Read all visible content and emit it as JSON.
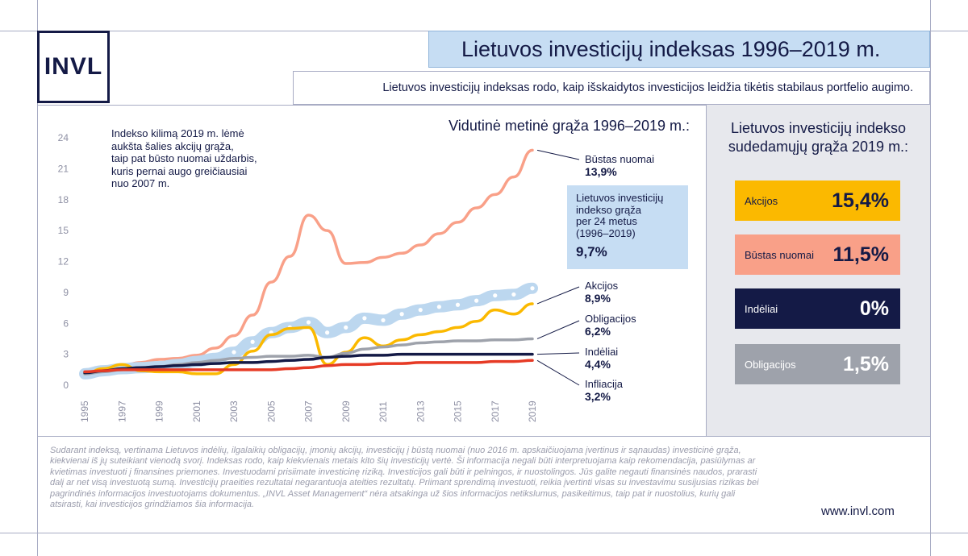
{
  "logo": "INVL",
  "title": "Lietuvos investicijų indeksas 1996–2019 m.",
  "subtitle": "Lietuvos investicijų indeksas rodo, kaip išskaidytos investicijos leidžia tikėtis stabilaus portfelio augimo.",
  "chart_title": "Vidutinė metinė grąža 1996–2019 m.:",
  "annotation": "Indekso kilimą 2019 m. lėmė\naukšta šalies akcijų grąža,\ntaip pat būsto nuomai uždarbis,\nkuris pernai augo greičiausiai\nnuo 2007 m.",
  "index_box": {
    "text": "Lietuvos investicijų\nindekso grąža\nper 24 metus\n(1996–2019)",
    "value": "9,7%"
  },
  "series_labels": [
    {
      "name": "Būstas nuomai",
      "value": "13,9%"
    },
    {
      "name": "Akcijos",
      "value": "8,9%"
    },
    {
      "name": "Obligacijos",
      "value": "6,2%"
    },
    {
      "name": "Indėliai",
      "value": "4,4%"
    },
    {
      "name": "Infliacija",
      "value": "3,2%"
    }
  ],
  "right_panel": {
    "title": "Lietuvos investicijų indekso\nsudedamųjų grąža 2019 m.:",
    "items": [
      {
        "label": "Akcijos",
        "value": "15,4%",
        "color": "#fbb900",
        "text_color": "#141a46"
      },
      {
        "label": "Būstas nuomai",
        "value": "11,5%",
        "color": "#f9a088",
        "text_color": "#141a46"
      },
      {
        "label": "Indėliai",
        "value": "0%",
        "color": "#141a46",
        "text_color": "#ffffff"
      },
      {
        "label": "Obligacijos",
        "value": "1,5%",
        "color": "#9ea2ab",
        "text_color": "#ffffff"
      }
    ]
  },
  "footer": "Sudarant indeksą, vertinama Lietuvos indėlių, ilgalaikių obligacijų, įmonių akcijų, investicijų į būstą nuomai (nuo 2016 m. apskaičiuojama įvertinus ir sąnaudas) investicinė grąža, kiekvienai iš jų suteikiant vienodą svorį. Indeksas rodo, kaip kiekvienais metais kito šių investicijų vertė. Ši informacija negali būti interpretuojama kaip rekomendacija, pasiūlymas ar kvietimas investuoti į finansines priemones. Investuodami prisiimate investicinę riziką. Investicijos gali būti ir pelningos, ir nuostolingos. Jūs galite negauti finansinės naudos, prarasti dalį ar net visą investuotą sumą. Investicijų praeities rezultatai negarantuoja ateities rezultatų. Priimant sprendimą investuoti, reikia įvertinti visas su investavimu susijusias rizikas bei pagrindinės informacijos investuotojams dokumentus. „INVL Asset Management“ nėra atsakinga už šios informacijos netikslumus, pasikeitimus, taip pat ir nuostolius, kurių gali atsirasti, kai investicijos grindžiamos šia informacija.",
  "website": "www.invl.com",
  "chart_data": {
    "type": "line",
    "x": [
      1995,
      1996,
      1997,
      1998,
      1999,
      2000,
      2001,
      2002,
      2003,
      2004,
      2005,
      2006,
      2007,
      2008,
      2009,
      2010,
      2011,
      2012,
      2013,
      2014,
      2015,
      2016,
      2017,
      2018,
      2019
    ],
    "xticks": [
      1995,
      1997,
      1999,
      2001,
      2003,
      2005,
      2007,
      2009,
      2011,
      2013,
      2015,
      2017,
      2019
    ],
    "yticks": [
      0,
      3,
      6,
      9,
      12,
      15,
      18,
      21,
      24
    ],
    "ylim": [
      0,
      24
    ],
    "series": [
      {
        "name": "Būstas nuomai",
        "color": "#f9a088",
        "values": [
          1.1,
          1.5,
          1.9,
          2.2,
          2.5,
          2.6,
          2.9,
          3.6,
          4.8,
          6.8,
          10.0,
          12.5,
          16.5,
          15.0,
          11.8,
          11.9,
          12.4,
          12.8,
          13.6,
          14.7,
          15.8,
          17.2,
          18.5,
          20.2,
          22.8
        ]
      },
      {
        "name": "Lietuvos investicijų indeksas",
        "color": "#bcd7ef",
        "values": [
          1.1,
          1.4,
          1.6,
          1.7,
          1.8,
          2.0,
          2.3,
          2.6,
          3.2,
          4.2,
          5.1,
          5.6,
          6.1,
          5.1,
          5.6,
          6.5,
          6.3,
          6.9,
          7.3,
          7.6,
          7.8,
          8.2,
          8.7,
          8.8,
          9.4
        ]
      },
      {
        "name": "Akcijos",
        "color": "#fbb900",
        "values": [
          1.1,
          1.6,
          2.0,
          1.4,
          1.3,
          1.3,
          1.1,
          1.1,
          2.0,
          3.3,
          4.9,
          5.5,
          5.6,
          2.0,
          3.2,
          4.6,
          3.8,
          4.4,
          4.9,
          5.2,
          5.6,
          6.2,
          7.3,
          6.9,
          7.9
        ]
      },
      {
        "name": "Obligacijos",
        "color": "#9ea2ab",
        "values": [
          1.1,
          1.3,
          1.5,
          1.7,
          1.8,
          2.0,
          2.2,
          2.4,
          2.6,
          2.7,
          2.8,
          2.8,
          2.9,
          2.7,
          3.1,
          3.5,
          3.7,
          3.9,
          4.1,
          4.2,
          4.3,
          4.3,
          4.4,
          4.4,
          4.5
        ]
      },
      {
        "name": "Indėliai",
        "color": "#141a46",
        "values": [
          1.2,
          1.4,
          1.6,
          1.7,
          1.8,
          1.9,
          2.0,
          2.1,
          2.2,
          2.2,
          2.3,
          2.4,
          2.5,
          2.7,
          2.8,
          2.9,
          2.9,
          3.0,
          3.0,
          3.0,
          3.0,
          3.0,
          3.0,
          3.0,
          3.0
        ]
      },
      {
        "name": "Infliacija",
        "color": "#e63a25",
        "values": [
          1.3,
          1.4,
          1.5,
          1.5,
          1.5,
          1.5,
          1.5,
          1.5,
          1.5,
          1.5,
          1.5,
          1.6,
          1.7,
          1.9,
          2.0,
          2.0,
          2.1,
          2.1,
          2.2,
          2.2,
          2.2,
          2.2,
          2.3,
          2.3,
          2.4
        ]
      }
    ]
  }
}
